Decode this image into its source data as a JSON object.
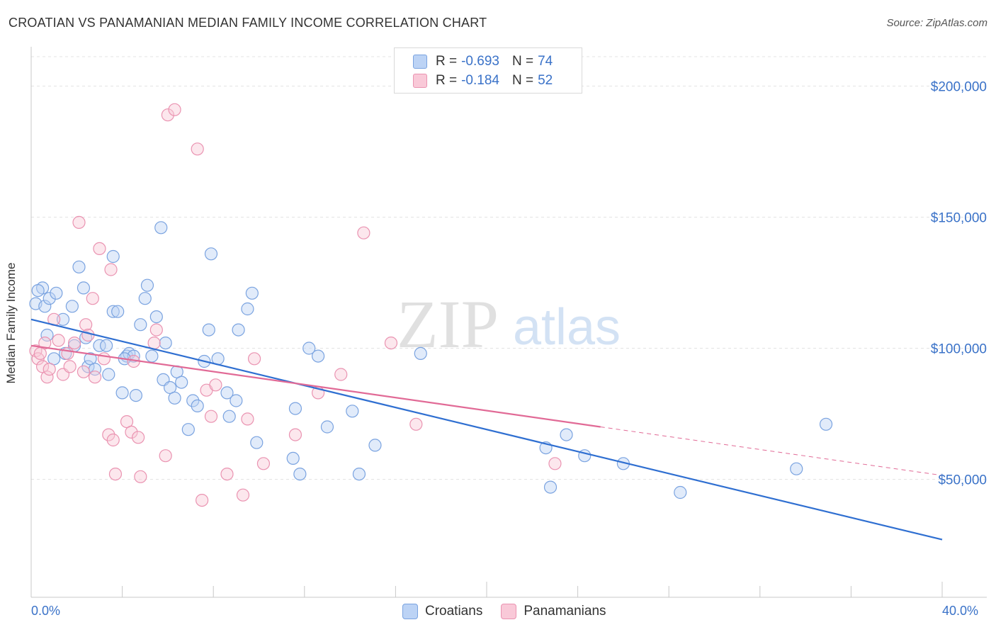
{
  "title": "CROATIAN VS PANAMANIAN MEDIAN FAMILY INCOME CORRELATION CHART",
  "source": "Source: ZipAtlas.com",
  "watermark": {
    "zip": "ZIP",
    "atlas": "atlas"
  },
  "legend": {
    "r_label": "R =",
    "n_label": "N =",
    "rows": [
      {
        "r": "-0.693",
        "n": "74",
        "fill": "#bcd3f5",
        "stroke": "#7aa3e0"
      },
      {
        "r": "-0.184",
        "n": "52",
        "fill": "#f9c9d8",
        "stroke": "#ea93b1"
      }
    ]
  },
  "bottom_legend": [
    "Croatians",
    "Panamanians"
  ],
  "x_tick_labels": {
    "min": "0.0%",
    "max": "40.0%"
  },
  "colors": {
    "blue": "#3a72c8",
    "blue_line": "#2f6fd1",
    "pink_line": "#e16a96",
    "grid": "#e3e3e3"
  },
  "chart_data": {
    "type": "scatter",
    "title": "CROATIAN VS PANAMANIAN MEDIAN FAMILY INCOME CORRELATION CHART",
    "xlabel": "",
    "ylabel": "Median Family Income",
    "xlim": [
      0,
      40
    ],
    "ylim": [
      5000,
      215000
    ],
    "y_ticks": [
      50000,
      100000,
      150000,
      200000
    ],
    "y_tick_labels": [
      "$50,000",
      "$100,000",
      "$150,000",
      "$200,000"
    ],
    "grid": true,
    "series": [
      {
        "name": "Croatians",
        "color": "#7aa3e0",
        "trend": {
          "x": [
            0,
            40
          ],
          "y": [
            111000,
            27000
          ]
        },
        "points": [
          [
            0.2,
            117000
          ],
          [
            0.5,
            123000
          ],
          [
            0.6,
            116000
          ],
          [
            0.8,
            119000
          ],
          [
            1.1,
            121000
          ],
          [
            0.3,
            122000
          ],
          [
            1.4,
            111000
          ],
          [
            1.8,
            116000
          ],
          [
            2.1,
            131000
          ],
          [
            2.3,
            123000
          ],
          [
            1.5,
            98000
          ],
          [
            2.5,
            93000
          ],
          [
            2.6,
            96000
          ],
          [
            2.8,
            92000
          ],
          [
            3.0,
            101000
          ],
          [
            3.3,
            101000
          ],
          [
            3.4,
            90000
          ],
          [
            3.6,
            135000
          ],
          [
            3.6,
            114000
          ],
          [
            3.8,
            114000
          ],
          [
            4.0,
            83000
          ],
          [
            4.2,
            97000
          ],
          [
            4.3,
            98000
          ],
          [
            4.5,
            97000
          ],
          [
            4.6,
            82000
          ],
          [
            4.8,
            109000
          ],
          [
            5.0,
            119000
          ],
          [
            5.1,
            124000
          ],
          [
            5.3,
            97000
          ],
          [
            5.5,
            112000
          ],
          [
            5.7,
            146000
          ],
          [
            5.9,
            102000
          ],
          [
            5.8,
            88000
          ],
          [
            6.1,
            85000
          ],
          [
            6.3,
            81000
          ],
          [
            6.4,
            91000
          ],
          [
            6.6,
            87000
          ],
          [
            6.9,
            69000
          ],
          [
            7.1,
            80000
          ],
          [
            7.3,
            78000
          ],
          [
            7.6,
            95000
          ],
          [
            7.8,
            107000
          ],
          [
            7.9,
            136000
          ],
          [
            8.2,
            96000
          ],
          [
            8.6,
            83000
          ],
          [
            8.7,
            74000
          ],
          [
            9.0,
            80000
          ],
          [
            9.1,
            107000
          ],
          [
            9.5,
            115000
          ],
          [
            9.7,
            121000
          ],
          [
            9.9,
            64000
          ],
          [
            11.5,
            58000
          ],
          [
            11.6,
            77000
          ],
          [
            11.8,
            52000
          ],
          [
            12.2,
            100000
          ],
          [
            12.6,
            97000
          ],
          [
            13.0,
            70000
          ],
          [
            14.1,
            76000
          ],
          [
            14.4,
            52000
          ],
          [
            15.1,
            63000
          ],
          [
            17.1,
            98000
          ],
          [
            22.6,
            62000
          ],
          [
            22.8,
            47000
          ],
          [
            23.5,
            67000
          ],
          [
            24.3,
            59000
          ],
          [
            26.0,
            56000
          ],
          [
            28.5,
            45000
          ],
          [
            33.6,
            54000
          ],
          [
            34.9,
            71000
          ],
          [
            4.1,
            96000
          ],
          [
            2.4,
            104000
          ],
          [
            1.0,
            96000
          ],
          [
            0.7,
            105000
          ],
          [
            1.9,
            101000
          ]
        ]
      },
      {
        "name": "Panamanians",
        "color": "#ea93b1",
        "trend": {
          "x": [
            0,
            25
          ],
          "y": [
            101000,
            70000
          ]
        },
        "trend_dashed": {
          "x": [
            25,
            40
          ],
          "y": [
            70000,
            51500
          ]
        },
        "points": [
          [
            0.2,
            99000
          ],
          [
            0.3,
            96000
          ],
          [
            0.4,
            98000
          ],
          [
            0.5,
            93000
          ],
          [
            0.6,
            102000
          ],
          [
            0.7,
            89000
          ],
          [
            0.8,
            92000
          ],
          [
            1.0,
            111000
          ],
          [
            1.2,
            103000
          ],
          [
            1.4,
            90000
          ],
          [
            1.6,
            98000
          ],
          [
            1.7,
            93000
          ],
          [
            1.9,
            102000
          ],
          [
            2.1,
            148000
          ],
          [
            2.3,
            91000
          ],
          [
            2.4,
            109000
          ],
          [
            2.5,
            105000
          ],
          [
            2.7,
            119000
          ],
          [
            2.8,
            89000
          ],
          [
            3.0,
            138000
          ],
          [
            3.2,
            96000
          ],
          [
            3.4,
            67000
          ],
          [
            3.5,
            130000
          ],
          [
            3.6,
            65000
          ],
          [
            3.7,
            52000
          ],
          [
            4.2,
            72000
          ],
          [
            4.4,
            68000
          ],
          [
            4.5,
            95000
          ],
          [
            4.7,
            66000
          ],
          [
            4.8,
            51000
          ],
          [
            5.4,
            102000
          ],
          [
            5.5,
            107000
          ],
          [
            5.9,
            59000
          ],
          [
            6.0,
            189000
          ],
          [
            6.3,
            191000
          ],
          [
            7.3,
            176000
          ],
          [
            7.5,
            42000
          ],
          [
            7.7,
            84000
          ],
          [
            7.9,
            74000
          ],
          [
            8.1,
            86000
          ],
          [
            8.6,
            52000
          ],
          [
            9.3,
            44000
          ],
          [
            9.5,
            73000
          ],
          [
            9.8,
            96000
          ],
          [
            10.2,
            56000
          ],
          [
            11.6,
            67000
          ],
          [
            12.6,
            83000
          ],
          [
            13.6,
            90000
          ],
          [
            14.6,
            144000
          ],
          [
            15.8,
            102000
          ],
          [
            16.9,
            71000
          ],
          [
            23.0,
            56000
          ]
        ]
      }
    ]
  }
}
